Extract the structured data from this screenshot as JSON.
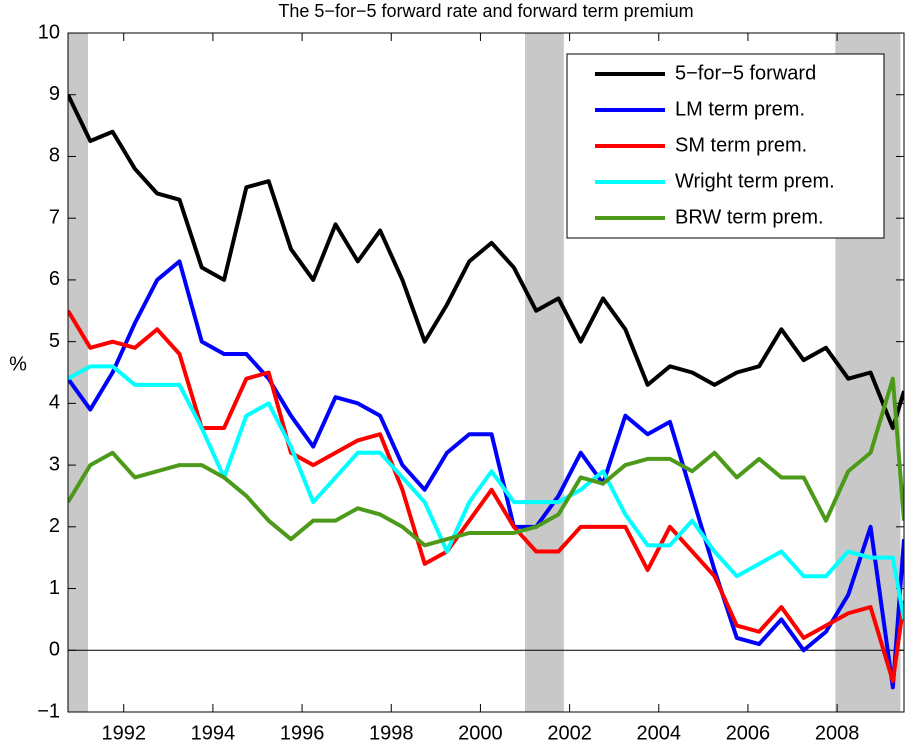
{
  "chart_data": {
    "type": "line",
    "title": "The 5−for−5 forward rate and forward term premium",
    "ylabel": "%",
    "x": [
      1990.75,
      1991.25,
      1991.75,
      1992.25,
      1992.75,
      1993.25,
      1993.75,
      1994.25,
      1994.75,
      1995.25,
      1995.75,
      1996.25,
      1996.75,
      1997.25,
      1997.75,
      1998.25,
      1998.75,
      1999.25,
      1999.75,
      2000.25,
      2000.75,
      2001.25,
      2001.75,
      2002.25,
      2002.75,
      2003.25,
      2003.75,
      2004.25,
      2004.75,
      2005.25,
      2005.75,
      2006.25,
      2006.75,
      2007.25,
      2007.75,
      2008.25,
      2008.75,
      2009.25,
      2009.5
    ],
    "series": [
      {
        "name": "5−for−5 forward",
        "color": "#000000",
        "values": [
          9.0,
          8.25,
          8.4,
          7.8,
          7.4,
          7.3,
          6.2,
          6.0,
          7.5,
          7.6,
          6.5,
          6.0,
          6.9,
          6.3,
          6.8,
          6.0,
          5.0,
          5.6,
          6.3,
          6.6,
          6.2,
          5.5,
          5.7,
          5.0,
          5.7,
          5.2,
          4.3,
          4.6,
          4.5,
          4.3,
          4.5,
          4.6,
          5.2,
          4.7,
          4.9,
          4.4,
          4.5,
          3.6,
          4.2
        ]
      },
      {
        "name": "LM term prem.",
        "color": "#0000ff",
        "values": [
          4.4,
          3.9,
          4.5,
          5.3,
          6.0,
          6.3,
          5.0,
          4.8,
          4.8,
          4.4,
          3.8,
          3.3,
          4.1,
          4.0,
          3.8,
          3.0,
          2.6,
          3.2,
          3.5,
          3.5,
          2.0,
          2.0,
          2.5,
          3.2,
          2.7,
          3.8,
          3.5,
          3.7,
          2.5,
          1.3,
          0.2,
          0.1,
          0.5,
          0.0,
          0.3,
          0.9,
          2.0,
          -0.6,
          1.8
        ]
      },
      {
        "name": "SM term prem.",
        "color": "#ff0000",
        "values": [
          5.5,
          4.9,
          5.0,
          4.9,
          5.2,
          4.8,
          3.6,
          3.6,
          4.4,
          4.5,
          3.2,
          3.0,
          3.2,
          3.4,
          3.5,
          2.6,
          1.4,
          1.6,
          2.1,
          2.6,
          2.0,
          1.6,
          1.6,
          2.0,
          2.0,
          2.0,
          1.3,
          2.0,
          1.6,
          1.2,
          0.4,
          0.3,
          0.7,
          0.2,
          0.4,
          0.6,
          0.7,
          -0.5,
          0.8
        ]
      },
      {
        "name": "Wright term prem.",
        "color": "#00ffff",
        "values": [
          4.4,
          4.6,
          4.6,
          4.3,
          4.3,
          4.3,
          3.6,
          2.8,
          3.8,
          4.0,
          3.3,
          2.4,
          2.8,
          3.2,
          3.2,
          2.8,
          2.4,
          1.6,
          2.4,
          2.9,
          2.4,
          2.4,
          2.4,
          2.6,
          2.9,
          2.2,
          1.7,
          1.7,
          2.1,
          1.6,
          1.2,
          1.4,
          1.6,
          1.2,
          1.2,
          1.6,
          1.5,
          1.5,
          0.5
        ]
      },
      {
        "name": "BRW term prem.",
        "color": "#4d9a1a",
        "values": [
          2.4,
          3.0,
          3.2,
          2.8,
          2.9,
          3.0,
          3.0,
          2.8,
          2.5,
          2.1,
          1.8,
          2.1,
          2.1,
          2.3,
          2.2,
          2.0,
          1.7,
          1.8,
          1.9,
          1.9,
          1.9,
          2.0,
          2.2,
          2.8,
          2.7,
          3.0,
          3.1,
          3.1,
          2.9,
          3.2,
          2.8,
          3.1,
          2.8,
          2.8,
          2.1,
          2.9,
          3.2,
          4.4,
          2.1
        ]
      }
    ],
    "shaded_periods": [
      [
        1990.75,
        1991.2
      ],
      [
        2001.0,
        2001.87
      ],
      [
        2007.96,
        2009.42
      ]
    ],
    "shade_color": "#c8c8c8",
    "hline": 0,
    "xlim": [
      1990.75,
      2009.5
    ],
    "xticks": [
      1992,
      1994,
      1996,
      1998,
      2000,
      2002,
      2004,
      2006,
      2008
    ],
    "ylim": [
      -1,
      10
    ],
    "yticks": [
      {
        "value": -1,
        "label": "−1"
      },
      0,
      1,
      2,
      3,
      4,
      5,
      6,
      7,
      8,
      9,
      10
    ],
    "legend": "upper right"
  }
}
